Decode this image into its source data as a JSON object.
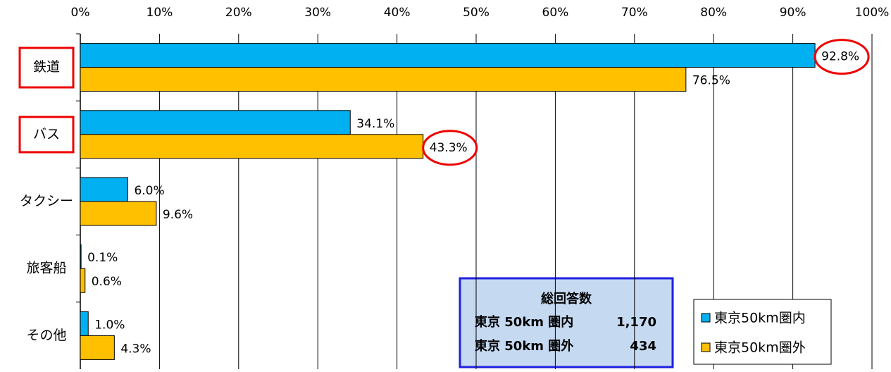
{
  "chart_data": {
    "type": "hbar",
    "categories": [
      "鉄道",
      "バス",
      "タクシー",
      "旅客船",
      "その他"
    ],
    "series": [
      {
        "name": "東京50km圏内",
        "color": "#00b0f0",
        "values": [
          92.8,
          34.1,
          6.0,
          0.1,
          1.0
        ],
        "value_labels": [
          "92.8%",
          "34.1%",
          "6.0%",
          "0.1%",
          "1.0%"
        ]
      },
      {
        "name": "東京50km圏外",
        "color": "#ffc000",
        "values": [
          76.5,
          43.3,
          9.6,
          0.6,
          4.3
        ],
        "value_labels": [
          "76.5%",
          "43.3%",
          "9.6%",
          "0.6%",
          "4.3%"
        ]
      }
    ],
    "xlim": [
      0,
      100
    ],
    "xticks": [
      {
        "value": 0,
        "label": "0%"
      },
      {
        "value": 10,
        "label": "10%"
      },
      {
        "value": 20,
        "label": "20%"
      },
      {
        "value": 30,
        "label": "30%"
      },
      {
        "value": 40,
        "label": "40%"
      },
      {
        "value": 50,
        "label": "50%"
      },
      {
        "value": 60,
        "label": "60%"
      },
      {
        "value": 70,
        "label": "70%"
      },
      {
        "value": 80,
        "label": "80%"
      },
      {
        "value": 90,
        "label": "90%"
      },
      {
        "value": 100,
        "label": "100%"
      }
    ],
    "grid": true,
    "legend": "lower right",
    "info_box": {
      "title": "総回答数",
      "rows": [
        {
          "label": "東京 50km 圏内",
          "count": "1,170"
        },
        {
          "label": "東京 50km 圏外",
          "count": "434"
        }
      ]
    }
  }
}
